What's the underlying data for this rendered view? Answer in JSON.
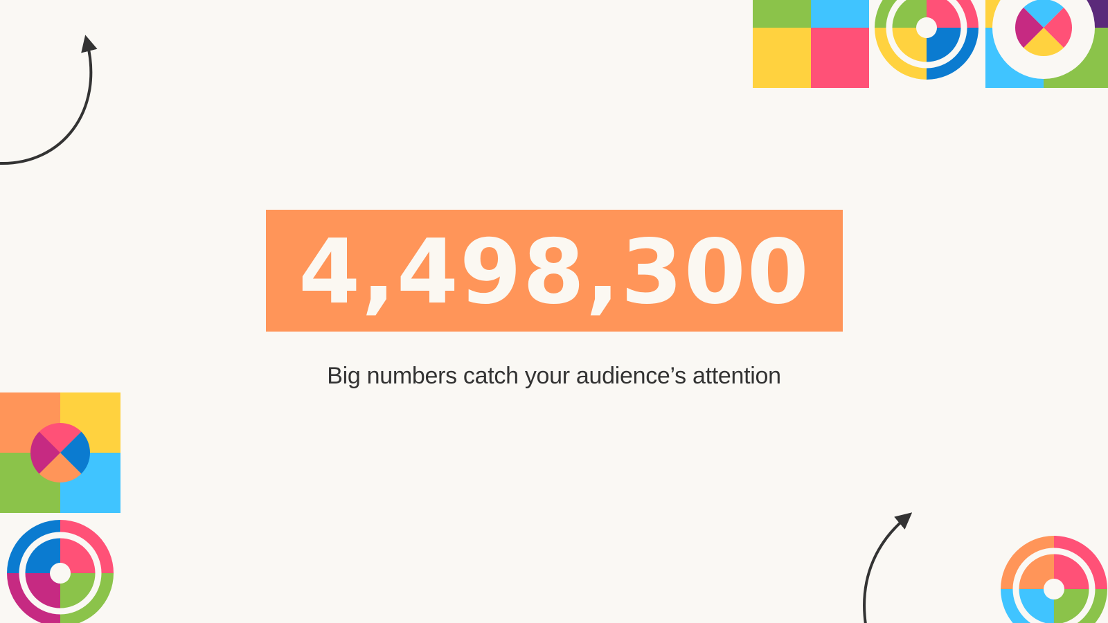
{
  "slide": {
    "big_number": "4,498,300",
    "subtitle": "Big numbers catch your audience’s attention"
  },
  "colors": {
    "background": "#faf8f4",
    "accent_orange": "#ff9559",
    "green": "#8bc34a",
    "cyan": "#40c4ff",
    "yellow": "#ffd23f",
    "pink": "#ff5177",
    "blue": "#0b7bd0",
    "magenta": "#c62a82",
    "purple": "#5b2a7a",
    "arrow": "#333333"
  },
  "icons": [
    "curved-arrow-icon",
    "target-circle-icon",
    "quadrant-square-icon",
    "x-circle-icon"
  ]
}
